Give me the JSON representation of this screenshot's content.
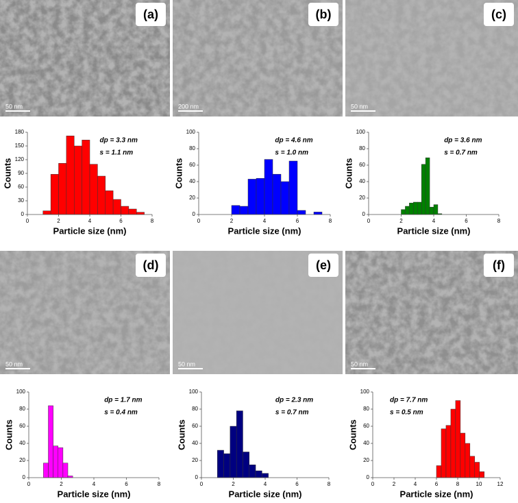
{
  "panels": [
    {
      "label": "(a)",
      "scale_bar": "50 nm"
    },
    {
      "label": "(b)",
      "scale_bar": "200 nm"
    },
    {
      "label": "(c)",
      "scale_bar": "50 nm"
    },
    {
      "label": "(d)",
      "scale_bar": "50 nm"
    },
    {
      "label": "(e)",
      "scale_bar": "50 nm"
    },
    {
      "label": "(f)",
      "scale_bar": "50 nm"
    }
  ],
  "chart_data": [
    {
      "type": "histogram",
      "color": "#ff0000",
      "bins": [
        1,
        1.5,
        2,
        2.5,
        3,
        3.5,
        4,
        4.5,
        5,
        5.5,
        6,
        6.5,
        7,
        7.5
      ],
      "values": [
        8,
        88,
        112,
        172,
        150,
        163,
        110,
        84,
        52,
        33,
        18,
        12,
        5
      ],
      "xlim": [
        0,
        8
      ],
      "xticks": [
        0,
        2,
        4,
        6,
        8
      ],
      "ylim": [
        0,
        180
      ],
      "yticks": [
        0,
        30,
        60,
        90,
        120,
        150,
        180
      ],
      "xlabel": "Particle size (nm)",
      "ylabel": "Counts",
      "annotations": [
        "dp = 3.3 nm",
        "s = 1.1 nm"
      ],
      "annotation_corner": "upper right"
    },
    {
      "type": "histogram",
      "color": "#0000ff",
      "bins": [
        2,
        2.5,
        3,
        3.5,
        4,
        4.5,
        5,
        5.5,
        6,
        6.5,
        7,
        7.5
      ],
      "values": [
        11,
        10,
        43,
        44,
        67,
        49,
        40,
        65,
        5,
        0,
        3
      ],
      "xlim": [
        0,
        8
      ],
      "xticks": [
        0,
        2,
        4,
        6,
        8
      ],
      "ylim": [
        0,
        100
      ],
      "yticks": [
        0,
        20,
        40,
        60,
        80,
        100
      ],
      "xlabel": "Particle size (nm)",
      "ylabel": "Counts",
      "annotations": [
        "dp = 4.6 nm",
        "s = 1.0 nm"
      ],
      "annotation_corner": "upper right"
    },
    {
      "type": "histogram",
      "color": "#008000",
      "bins": [
        2,
        2.25,
        2.5,
        2.75,
        3,
        3.25,
        3.5,
        3.75,
        4,
        4.25,
        4.5
      ],
      "values": [
        6,
        10,
        14,
        15,
        15,
        61,
        69,
        9,
        12,
        1
      ],
      "xlim": [
        0,
        8
      ],
      "xticks": [
        0,
        2,
        4,
        6,
        8
      ],
      "ylim": [
        0,
        100
      ],
      "yticks": [
        0,
        20,
        40,
        60,
        80,
        100
      ],
      "xlabel": "Particle size (nm)",
      "ylabel": "Counts",
      "annotations": [
        "dp = 3.6 nm",
        "s = 0.7 nm"
      ],
      "annotation_corner": "upper right"
    },
    {
      "type": "histogram",
      "color": "#ff00ff",
      "bins": [
        0.9,
        1.2,
        1.5,
        1.8,
        2.1,
        2.4,
        2.7
      ],
      "values": [
        17,
        84,
        37,
        35,
        17,
        2
      ],
      "xlim": [
        0,
        8
      ],
      "xticks": [
        0,
        2,
        4,
        6,
        8
      ],
      "ylim": [
        0,
        100
      ],
      "yticks": [
        0,
        20,
        40,
        60,
        80,
        100
      ],
      "xlabel": "Particle size (nm)",
      "ylabel": "Counts",
      "annotations": [
        "dp = 1.7 nm",
        "s = 0.4 nm"
      ],
      "annotation_corner": "upper right"
    },
    {
      "type": "histogram",
      "color": "#000080",
      "bins": [
        1,
        1.4,
        1.8,
        2.2,
        2.6,
        3,
        3.4,
        3.8,
        4.2
      ],
      "values": [
        32,
        28,
        60,
        78,
        30,
        15,
        8,
        5
      ],
      "xlim": [
        0,
        8
      ],
      "xticks": [
        0,
        2,
        4,
        6,
        8
      ],
      "ylim": [
        0,
        100
      ],
      "yticks": [
        0,
        20,
        40,
        60,
        80,
        100
      ],
      "xlabel": "Particle size (nm)",
      "ylabel": "Counts",
      "annotations": [
        "dp = 2.3 nm",
        "s = 0.7 nm"
      ],
      "annotation_corner": "upper right"
    },
    {
      "type": "histogram",
      "color": "#ff0000",
      "bins": [
        6,
        6.45,
        6.9,
        7.35,
        7.8,
        8.25,
        8.7,
        9.15,
        9.6,
        10.05,
        10.5
      ],
      "values": [
        14,
        57,
        61,
        80,
        90,
        52,
        40,
        25,
        18,
        7
      ],
      "xlim": [
        0,
        12
      ],
      "xticks": [
        0,
        2,
        4,
        6,
        8,
        10,
        12
      ],
      "ylim": [
        0,
        100
      ],
      "yticks": [
        0,
        20,
        40,
        60,
        80,
        100
      ],
      "xlabel": "Particle size (nm)",
      "ylabel": "Counts",
      "annotations": [
        "dp = 7.7 nm",
        "s = 0.5 nm"
      ],
      "annotation_corner": "upper left"
    }
  ]
}
